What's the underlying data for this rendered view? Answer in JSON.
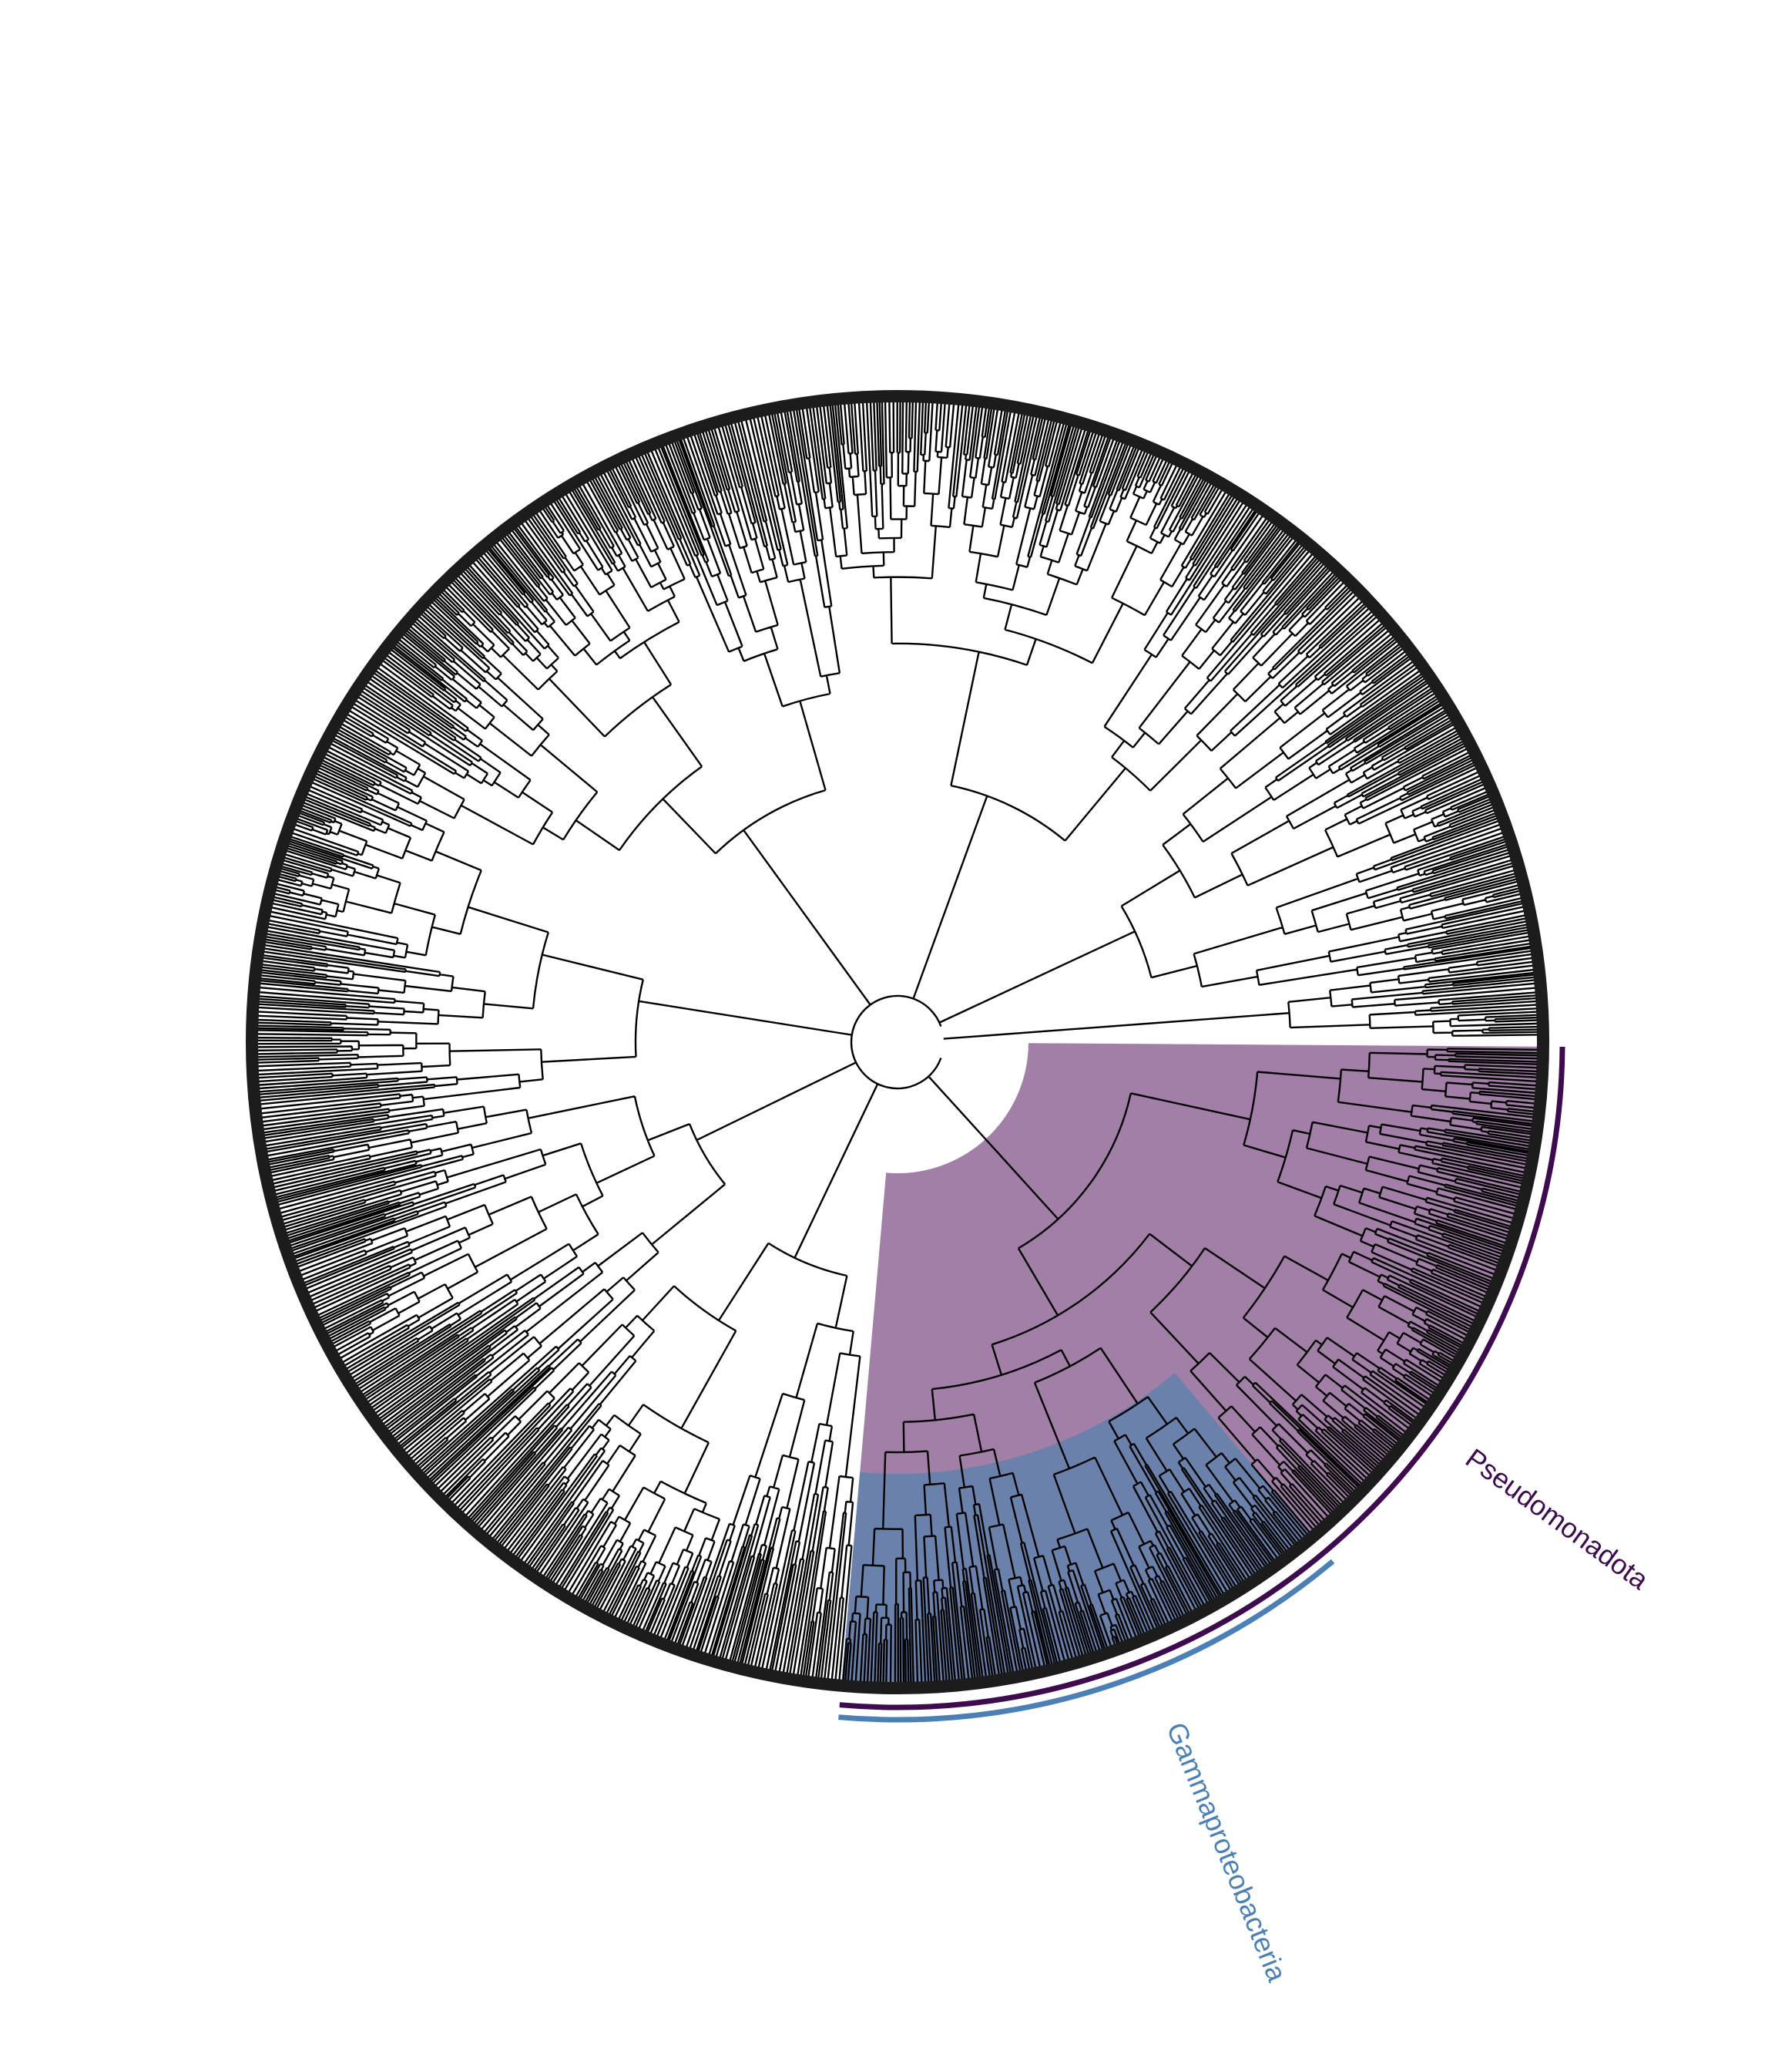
{
  "tree": {
    "type": "circular-phylogeny",
    "branch_color": "#000000",
    "clades": [
      {
        "id": "pseudomonadota",
        "label": "Pseudomonadota",
        "highlight_color": "#a17fa7",
        "bar_color": "#3f0b4f",
        "label_color": "#3f0b4f"
      },
      {
        "id": "gammaproteobacteria",
        "label": "Gammaproteobacteria",
        "highlight_color": "#6a81ac",
        "bar_color": "#4a80b5",
        "label_color": "#4a80b5"
      }
    ]
  }
}
